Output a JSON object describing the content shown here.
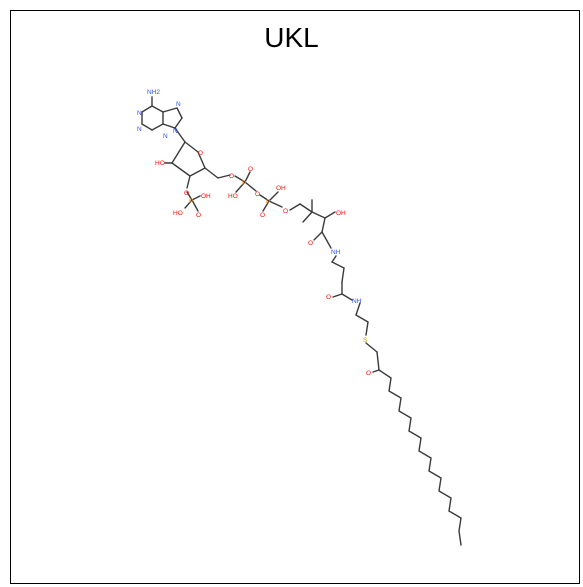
{
  "title": "UKL",
  "colors": {
    "bond": "#3a3a3a",
    "nitrogen": "#3050f8",
    "oxygen": "#ff0d0d",
    "phosphorus": "#ff8000",
    "sulfur": "#c8c820",
    "frame": "#000000"
  },
  "atom_labels": {
    "nh2": "NH2",
    "n1": "N",
    "n2": "N",
    "n3": "N",
    "n4": "N",
    "n5": "N",
    "ho_sugar": "HO",
    "o_ring": "O",
    "o_3p": "O",
    "p1": "P",
    "p1_oh": "OH",
    "p1_ho": "HO",
    "p1_o": "O",
    "o5": "O",
    "p2": "P",
    "p2_o": "O",
    "p2_ho": "HO",
    "o_bridge": "O",
    "p3": "P",
    "p3_oh": "OH",
    "p3_o": "O",
    "o_pant": "O",
    "oh_pant": "OH",
    "o_amide1": "O",
    "nh1": "NH",
    "o_amide2": "O",
    "nh2b": "NH",
    "s": "S",
    "o_keto": "O"
  }
}
